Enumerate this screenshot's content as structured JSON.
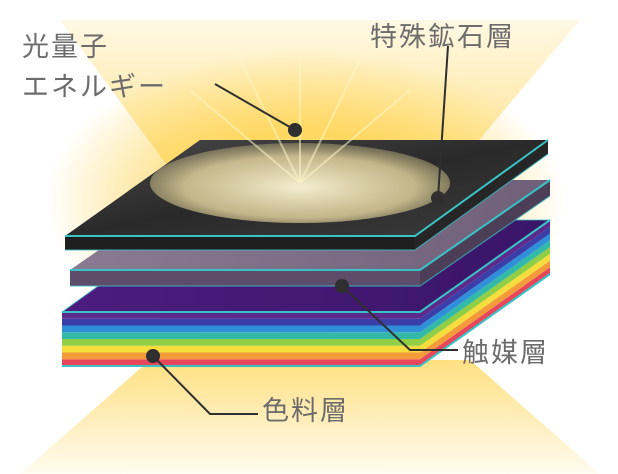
{
  "labels": {
    "quantum_line1": "光量子",
    "quantum_line2": "エネルギー",
    "special_mineral_layer": "特殊鉱石層",
    "catalyst_layer": "触媒層",
    "pigment_layer": "色料層"
  },
  "colors": {
    "glow": "#ffd24a",
    "top_layer": "#3a3a3a",
    "middle_layer": "#7e6d86",
    "edge_accent": "#39c3c6",
    "label_text": "#6c6c6c",
    "leader_line": "#2f2f2f"
  },
  "rainbow_edge_colors": [
    "#e8465a",
    "#f39b3a",
    "#f5dd3d",
    "#8fce45",
    "#33b9a7",
    "#2f8fd8",
    "#3a3ea8",
    "#5b2a8c"
  ]
}
